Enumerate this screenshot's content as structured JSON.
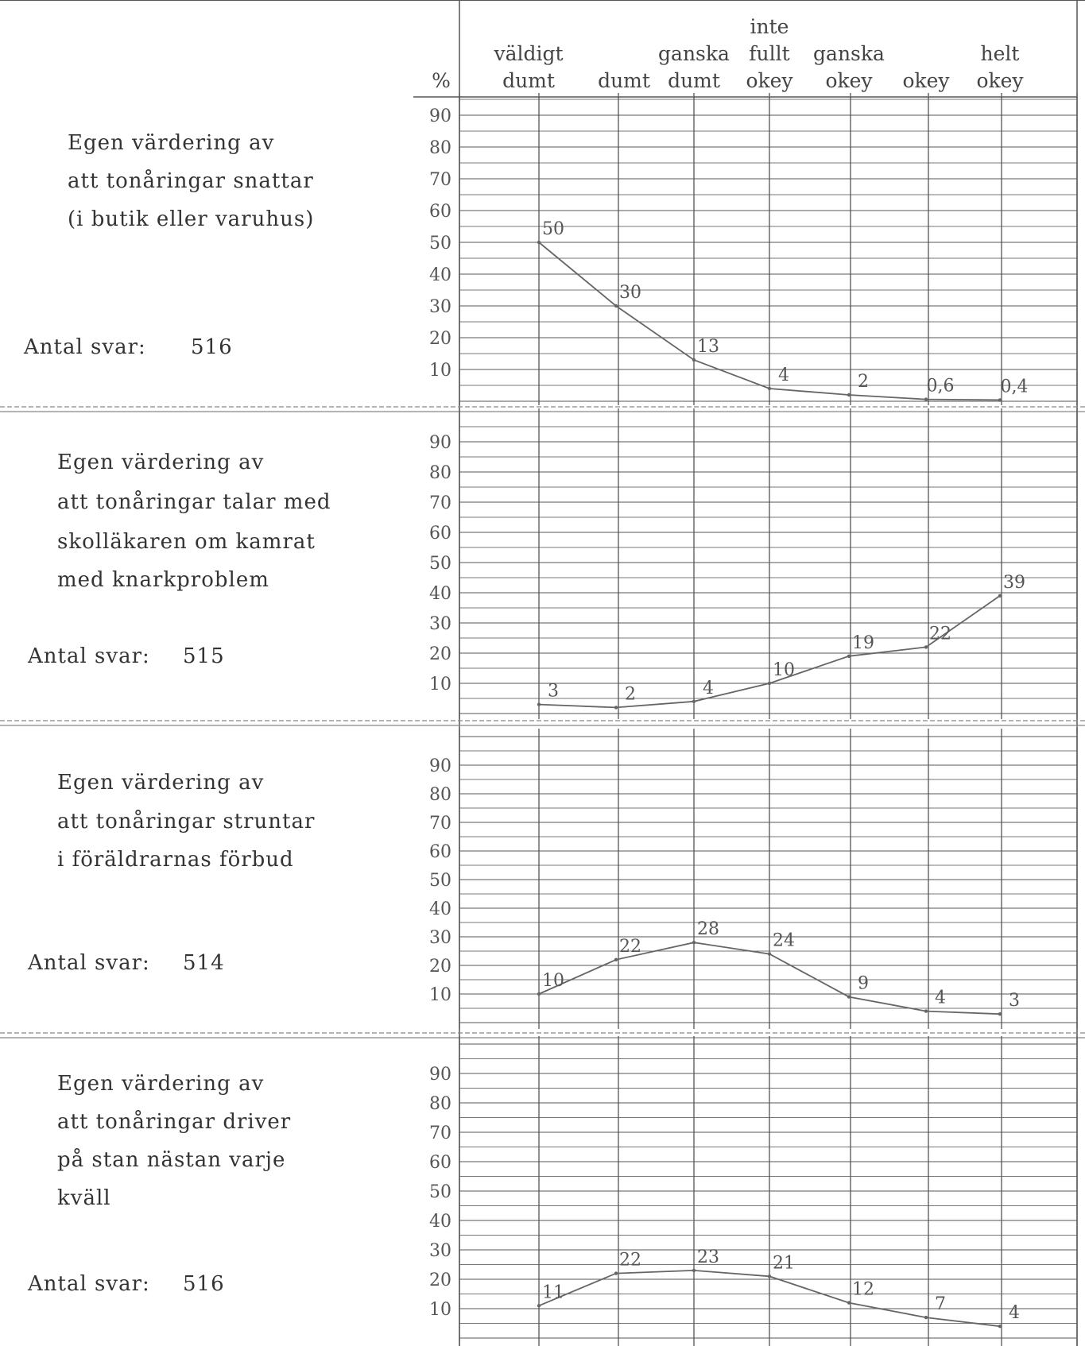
{
  "header": {
    "percent_label": "%",
    "columns": [
      [
        "väldigt",
        "dumt"
      ],
      [
        "",
        "dumt"
      ],
      [
        "ganska",
        "dumt"
      ],
      [
        "inte",
        "fullt",
        "okey"
      ],
      [
        "ganska",
        "okey"
      ],
      [
        "",
        "okey"
      ],
      [
        "helt",
        "okey"
      ]
    ]
  },
  "chart_data": [
    {
      "type": "line",
      "title_lines": [
        "Egen värdering av",
        "att tonåringar snattar",
        "(i butik eller varuhus)"
      ],
      "antal_label": "Antal svar:",
      "antal_value": "516",
      "categories": [
        "väldigt dumt",
        "dumt",
        "ganska dumt",
        "inte fullt okey",
        "ganska okey",
        "okey",
        "helt okey"
      ],
      "values": [
        50,
        30,
        13,
        4,
        2,
        0.6,
        0.4
      ],
      "data_labels": [
        "50",
        "30",
        "13",
        "4",
        "2",
        "0,6",
        "0,4"
      ],
      "yticks": [
        "90",
        "80",
        "70",
        "60",
        "50",
        "40",
        "30",
        "20",
        "10"
      ],
      "ylim": [
        0,
        100
      ],
      "grid": true
    },
    {
      "type": "line",
      "title_lines": [
        "Egen värdering av",
        "att tonåringar talar med",
        "skolläkaren om kamrat",
        "med knarkproblem"
      ],
      "antal_label": "Antal svar:",
      "antal_value": "515",
      "categories": [
        "väldigt dumt",
        "dumt",
        "ganska dumt",
        "inte fullt okey",
        "ganska okey",
        "okey",
        "helt okey"
      ],
      "values": [
        3,
        2,
        4,
        10,
        19,
        22,
        39
      ],
      "data_labels": [
        "3",
        "2",
        "4",
        "10",
        "19",
        "22",
        "39"
      ],
      "yticks": [
        "90",
        "80",
        "70",
        "60",
        "50",
        "40",
        "30",
        "20",
        "10"
      ],
      "ylim": [
        0,
        100
      ],
      "grid": true
    },
    {
      "type": "line",
      "title_lines": [
        "Egen värdering av",
        "att tonåringar struntar",
        "i föräldrarnas förbud"
      ],
      "antal_label": "Antal svar:",
      "antal_value": "514",
      "categories": [
        "väldigt dumt",
        "dumt",
        "ganska dumt",
        "inte fullt okey",
        "ganska okey",
        "okey",
        "helt okey"
      ],
      "values": [
        10,
        22,
        28,
        24,
        9,
        4,
        3
      ],
      "data_labels": [
        "10",
        "22",
        "28",
        "24",
        "9",
        "4",
        "3"
      ],
      "yticks": [
        "90",
        "80",
        "70",
        "60",
        "50",
        "40",
        "30",
        "20",
        "10"
      ],
      "ylim": [
        0,
        100
      ],
      "grid": true
    },
    {
      "type": "line",
      "title_lines": [
        "Egen värdering av",
        "att tonåringar driver",
        "på stan nästan varje",
        "kväll"
      ],
      "antal_label": "Antal svar:",
      "antal_value": "516",
      "categories": [
        "väldigt dumt",
        "dumt",
        "ganska dumt",
        "inte fullt okey",
        "ganska okey",
        "okey",
        "helt okey"
      ],
      "values": [
        11,
        22,
        23,
        21,
        12,
        7,
        4
      ],
      "data_labels": [
        "11",
        "22",
        "23",
        "21",
        "12",
        "7",
        "4"
      ],
      "yticks": [
        "90",
        "80",
        "70",
        "60",
        "50",
        "40",
        "30",
        "20",
        "10"
      ],
      "ylim": [
        0,
        100
      ],
      "grid": true
    }
  ]
}
